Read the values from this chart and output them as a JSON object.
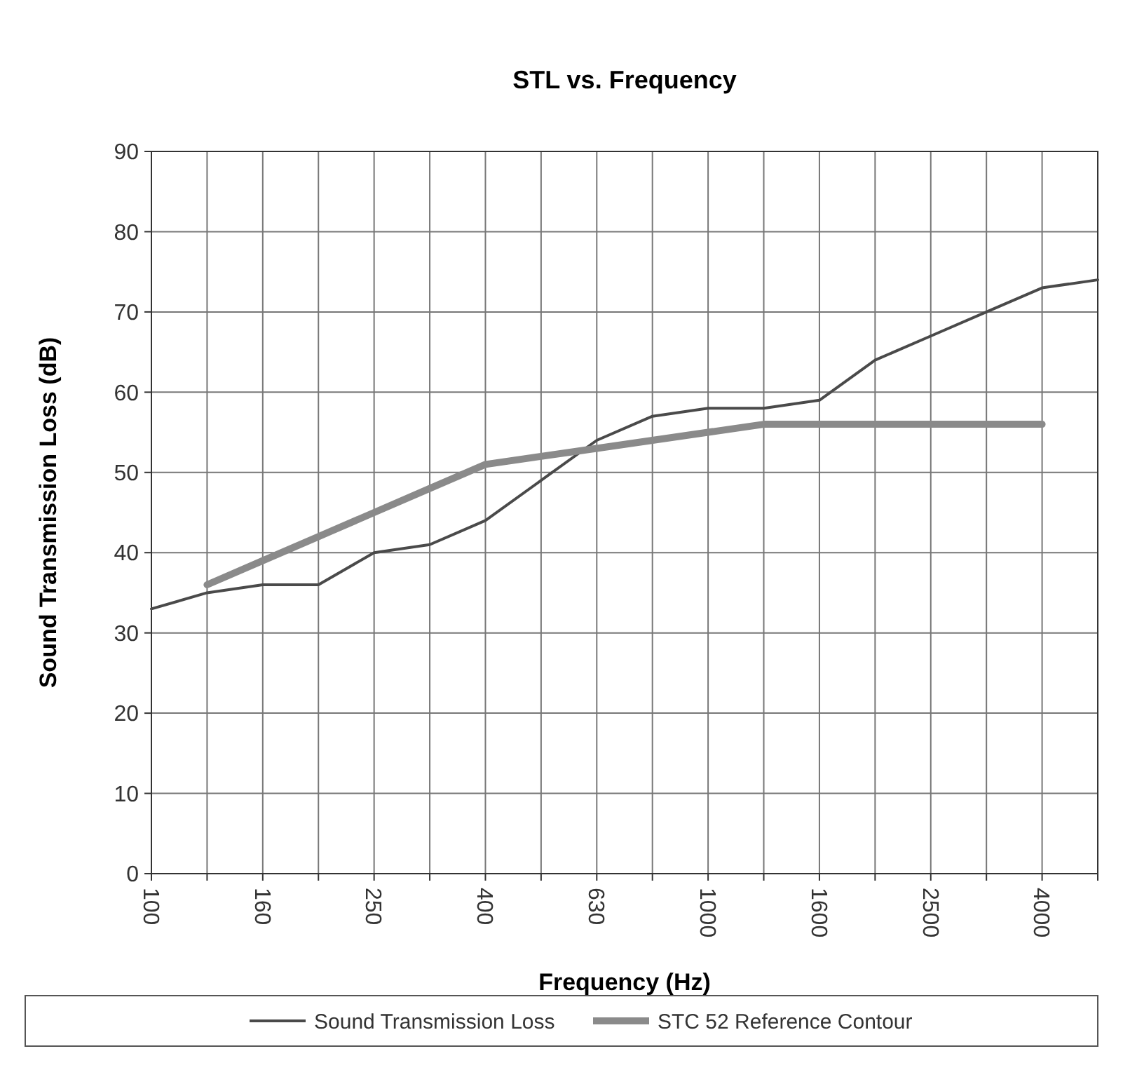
{
  "chart_data": {
    "type": "line",
    "title": "STL vs. Frequency",
    "xlabel": "Frequency (Hz)",
    "ylabel": "Sound Transmission Loss (dB)",
    "categories": [
      "100",
      null,
      "160",
      null,
      "250",
      null,
      "400",
      null,
      "630",
      null,
      "1000",
      null,
      "1600",
      null,
      "2500",
      null,
      "4000",
      null
    ],
    "series": [
      {
        "name": "Sound Transmission Loss",
        "color": "#4a4a4a",
        "values": [
          33,
          35,
          36,
          36,
          40,
          41,
          44,
          49,
          54,
          57,
          58,
          58,
          59,
          64,
          67,
          70,
          73,
          74
        ]
      },
      {
        "name": "STC 52 Reference Contour",
        "color": "#8a8a8a",
        "values": [
          null,
          36,
          39,
          42,
          45,
          48,
          51,
          52,
          53,
          54,
          55,
          56,
          56,
          56,
          56,
          56,
          56,
          null
        ]
      }
    ],
    "ylim": [
      0,
      90
    ],
    "yticks": [
      0,
      10,
      20,
      30,
      40,
      50,
      60,
      70,
      80,
      90
    ],
    "grid": true,
    "legend": "bottom",
    "marker": "none",
    "line_style": "solid"
  }
}
